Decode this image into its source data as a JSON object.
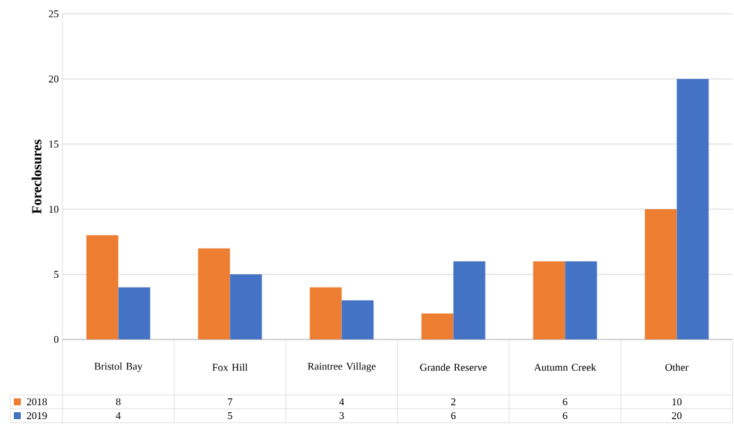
{
  "chart_data": {
    "type": "bar",
    "ylabel": "Foreclosures",
    "categories": [
      "Bristol Bay",
      "Fox Hill",
      "Raintree Village",
      "Grande Reserve",
      "Autumn Creek",
      "Other"
    ],
    "series": [
      {
        "name": "2018",
        "color": "#ed7d31",
        "values": [
          8,
          7,
          4,
          2,
          6,
          10
        ]
      },
      {
        "name": "2019",
        "color": "#4472c4",
        "values": [
          4,
          5,
          3,
          6,
          6,
          20
        ]
      }
    ],
    "ylim": [
      0,
      25
    ],
    "yticks": [
      0,
      5,
      10,
      15,
      20,
      25
    ],
    "grid": "y",
    "legend": "bottom",
    "data_labels": true
  }
}
